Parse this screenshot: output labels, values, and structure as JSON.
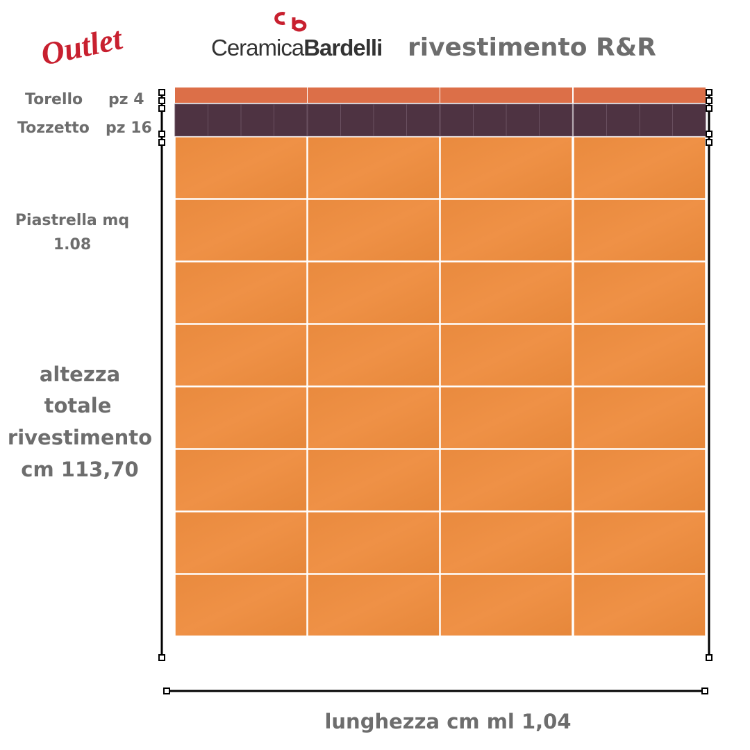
{
  "header": {
    "badge": "Outlet",
    "brand": {
      "first": "Ceramica",
      "second": "Bardelli"
    },
    "title": "rivestimento R&R"
  },
  "labels": {
    "torello": {
      "name": "Torello",
      "qty": "pz 4"
    },
    "tozzetto": {
      "name": "Tozzetto",
      "qty": "pz 16"
    },
    "piastrella": [
      "Piastrella mq",
      "1.08"
    ],
    "height": [
      "altezza",
      "totale",
      "rivestimento",
      "cm 113,70"
    ]
  },
  "footer": {
    "width": "lunghezza cm ml 1,04"
  }
}
